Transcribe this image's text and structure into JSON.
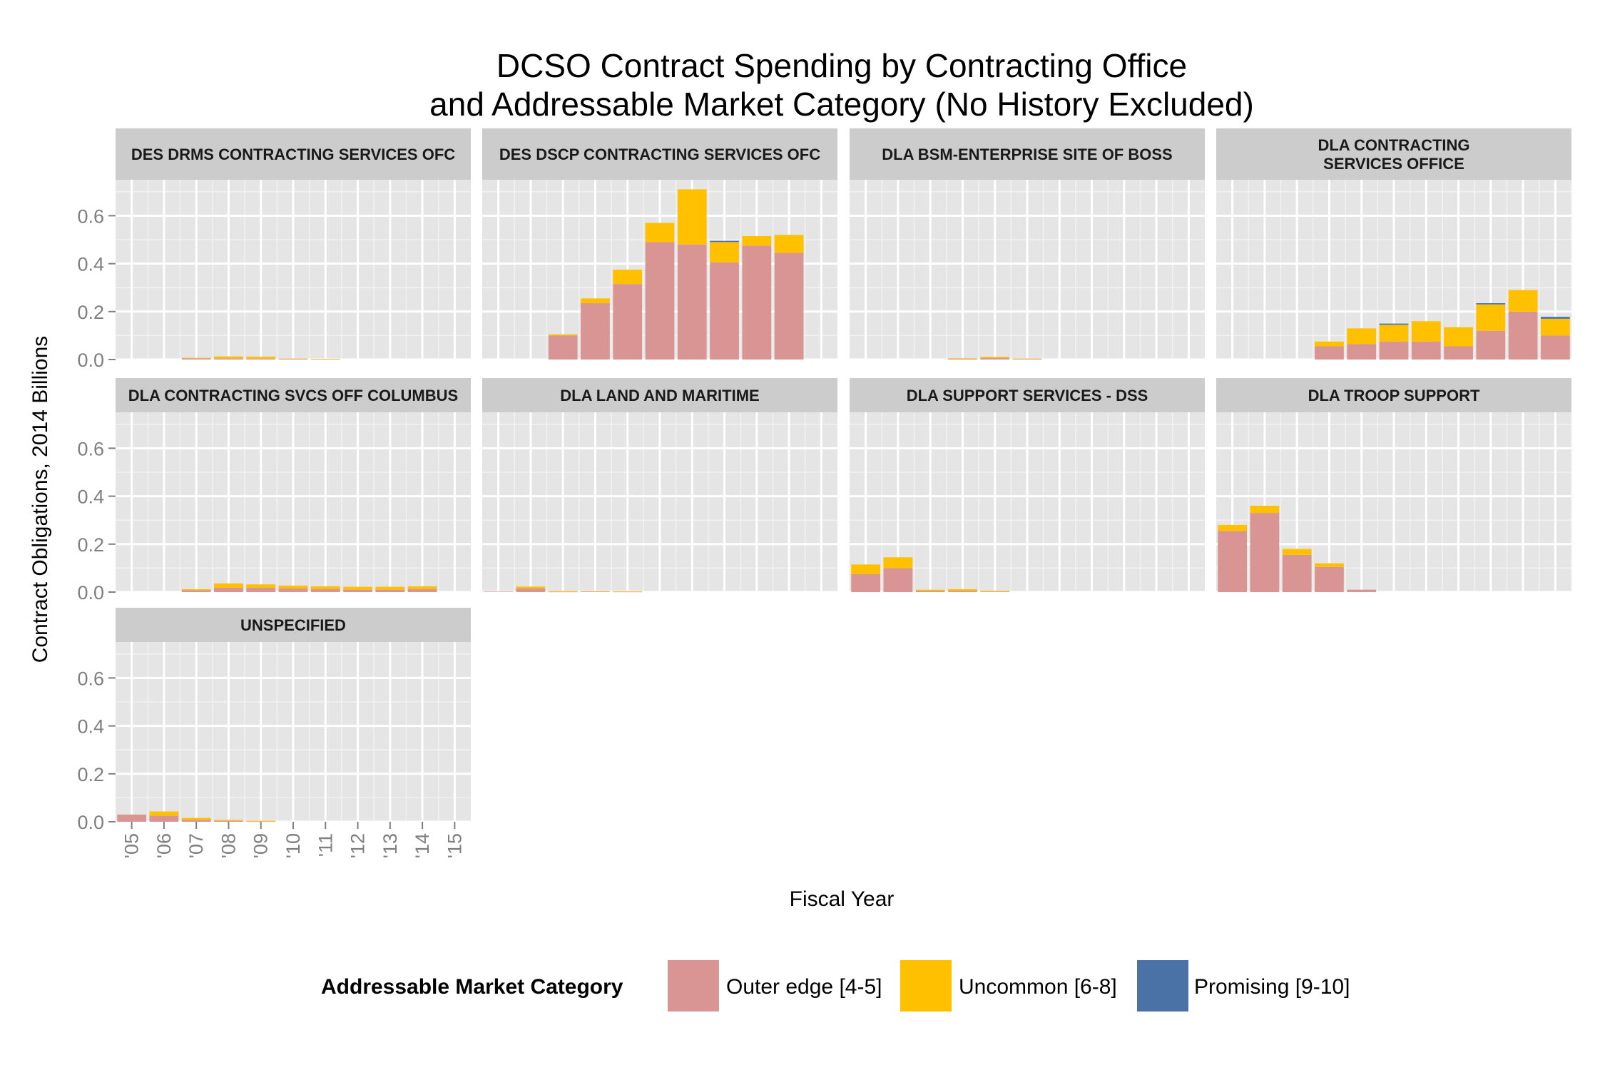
{
  "chart_data": {
    "type": "bar",
    "stacked": true,
    "title": "DCSO Contract Spending by Contracting Office\nand Addressable Market Category (No History Excluded)",
    "xlabel": "Fiscal Year",
    "ylabel": "Contract Obligations, 2014 Billions",
    "ylim": [
      0,
      0.75
    ],
    "y_ticks": [
      0.0,
      0.2,
      0.4,
      0.6
    ],
    "y_tick_labels": [
      "0.0",
      "0.2",
      "0.4",
      "0.6"
    ],
    "categories": [
      "'05",
      "'06",
      "'07",
      "'08",
      "'09",
      "'10",
      "'11",
      "'12",
      "'13",
      "'14",
      "'15"
    ],
    "grid": true,
    "legend": {
      "title": "Addressable Market Category",
      "position": "bottom",
      "entries": [
        {
          "name": "Outer edge [4-5]",
          "color": "#d99594"
        },
        {
          "name": "Uncommon [6-8]",
          "color": "#ffc000"
        },
        {
          "name": "Promising [9-10]",
          "color": "#4a72a6"
        }
      ]
    },
    "facets": [
      {
        "label": "DES DRMS CONTRACTING SERVICES OFC",
        "series": [
          {
            "name": "Outer edge [4-5]",
            "values": [
              0,
              0,
              0.005,
              0.005,
              0.004,
              0.003,
              0.002,
              0,
              0,
              0,
              0
            ]
          },
          {
            "name": "Uncommon [6-8]",
            "values": [
              0,
              0,
              0.002,
              0.008,
              0.008,
              0.001,
              0.001,
              0,
              0,
              0,
              0
            ]
          },
          {
            "name": "Promising [9-10]",
            "values": [
              0,
              0,
              0,
              0,
              0,
              0,
              0,
              0,
              0,
              0,
              0
            ]
          }
        ]
      },
      {
        "label": "DES DSCP CONTRACTING SERVICES OFC",
        "series": [
          {
            "name": "Outer edge [4-5]",
            "values": [
              0,
              0,
              0.1,
              0.235,
              0.315,
              0.49,
              0.48,
              0.405,
              0.475,
              0.445,
              0
            ]
          },
          {
            "name": "Uncommon [6-8]",
            "values": [
              0,
              0,
              0.005,
              0.02,
              0.06,
              0.08,
              0.23,
              0.085,
              0.04,
              0.075,
              0
            ]
          },
          {
            "name": "Promising [9-10]",
            "values": [
              0,
              0,
              0,
              0,
              0,
              0,
              0,
              0.005,
              0,
              0,
              0
            ]
          }
        ]
      },
      {
        "label": "DLA BSM-ENTERPRISE SITE OF BOSS",
        "series": [
          {
            "name": "Outer edge [4-5]",
            "values": [
              0,
              0,
              0,
              0.003,
              0.006,
              0.003,
              0,
              0,
              0,
              0,
              0
            ]
          },
          {
            "name": "Uncommon [6-8]",
            "values": [
              0,
              0,
              0,
              0.002,
              0.005,
              0.001,
              0,
              0,
              0,
              0,
              0
            ]
          },
          {
            "name": "Promising [9-10]",
            "values": [
              0,
              0,
              0,
              0,
              0,
              0,
              0,
              0,
              0,
              0,
              0
            ]
          }
        ]
      },
      {
        "label": "DLA CONTRACTING\nSERVICES OFFICE",
        "series": [
          {
            "name": "Outer edge [4-5]",
            "values": [
              0,
              0,
              0,
              0.055,
              0.065,
              0.075,
              0.075,
              0.055,
              0.12,
              0.2,
              0.1
            ]
          },
          {
            "name": "Uncommon [6-8]",
            "values": [
              0,
              0,
              0,
              0.02,
              0.065,
              0.07,
              0.085,
              0.08,
              0.11,
              0.09,
              0.07
            ]
          },
          {
            "name": "Promising [9-10]",
            "values": [
              0,
              0,
              0,
              0,
              0,
              0.005,
              0,
              0,
              0.005,
              0,
              0.008
            ]
          }
        ]
      },
      {
        "label": "DLA CONTRACTING SVCS OFF COLUMBUS",
        "series": [
          {
            "name": "Outer edge [4-5]",
            "values": [
              0,
              0,
              0.008,
              0.018,
              0.018,
              0.015,
              0.012,
              0.01,
              0.01,
              0.012,
              0
            ]
          },
          {
            "name": "Uncommon [6-8]",
            "values": [
              0,
              0,
              0.004,
              0.018,
              0.014,
              0.012,
              0.012,
              0.012,
              0.012,
              0.012,
              0
            ]
          },
          {
            "name": "Promising [9-10]",
            "values": [
              0,
              0,
              0,
              0,
              0,
              0,
              0,
              0,
              0,
              0,
              0
            ]
          }
        ]
      },
      {
        "label": "DLA LAND AND MARITIME",
        "series": [
          {
            "name": "Outer edge [4-5]",
            "values": [
              0.002,
              0.015,
              0.001,
              0.002,
              0.001,
              0,
              0,
              0,
              0,
              0,
              0
            ]
          },
          {
            "name": "Uncommon [6-8]",
            "values": [
              0,
              0.008,
              0.003,
              0.001,
              0.002,
              0,
              0,
              0,
              0,
              0,
              0
            ]
          },
          {
            "name": "Promising [9-10]",
            "values": [
              0,
              0,
              0,
              0,
              0,
              0,
              0,
              0,
              0,
              0,
              0
            ]
          }
        ]
      },
      {
        "label": "DLA SUPPORT SERVICES - DSS",
        "series": [
          {
            "name": "Outer edge [4-5]",
            "values": [
              0.075,
              0.1,
              0.005,
              0.005,
              0.002,
              0,
              0,
              0,
              0,
              0,
              0
            ]
          },
          {
            "name": "Uncommon [6-8]",
            "values": [
              0.04,
              0.045,
              0.005,
              0.007,
              0.003,
              0,
              0,
              0,
              0,
              0,
              0
            ]
          },
          {
            "name": "Promising [9-10]",
            "values": [
              0,
              0,
              0,
              0,
              0,
              0,
              0,
              0,
              0,
              0,
              0
            ]
          }
        ]
      },
      {
        "label": "DLA TROOP SUPPORT",
        "series": [
          {
            "name": "Outer edge [4-5]",
            "values": [
              0.255,
              0.33,
              0.155,
              0.105,
              0.01,
              0,
              0,
              0,
              0,
              0,
              0
            ]
          },
          {
            "name": "Uncommon [6-8]",
            "values": [
              0.025,
              0.03,
              0.025,
              0.015,
              0,
              0,
              0,
              0,
              0,
              0,
              0
            ]
          },
          {
            "name": "Promising [9-10]",
            "values": [
              0,
              0,
              0,
              0,
              0,
              0,
              0,
              0,
              0,
              0,
              0
            ]
          }
        ]
      },
      {
        "label": "UNSPECIFIED",
        "series": [
          {
            "name": "Outer edge [4-5]",
            "values": [
              0.03,
              0.025,
              0.008,
              0.004,
              0.001,
              0,
              0,
              0,
              0,
              0,
              0
            ]
          },
          {
            "name": "Uncommon [6-8]",
            "values": [
              0,
              0.018,
              0.008,
              0.004,
              0.003,
              0,
              0,
              0,
              0,
              0,
              0
            ]
          },
          {
            "name": "Promising [9-10]",
            "values": [
              0,
              0,
              0,
              0,
              0,
              0,
              0,
              0,
              0,
              0,
              0
            ]
          }
        ]
      }
    ]
  }
}
